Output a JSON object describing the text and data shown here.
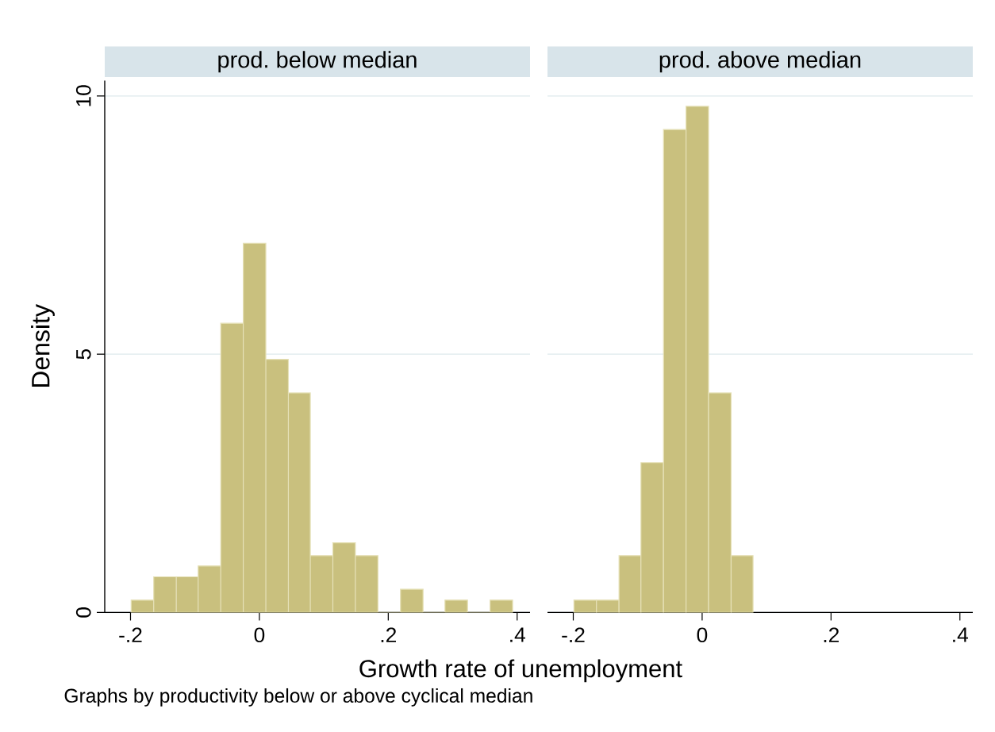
{
  "chart_data": [
    {
      "type": "histogram",
      "title": "prod. below median",
      "xlabel": "Growth rate of unemployment",
      "ylabel": "Density",
      "annotations": [
        "Graphs by productivity below or above cyclical median"
      ],
      "bins": [
        -0.199,
        -0.164,
        -0.129,
        -0.095,
        -0.06,
        -0.025,
        0.01,
        0.045,
        0.079,
        0.114,
        0.149,
        0.184,
        0.219,
        0.254,
        0.288,
        0.323,
        0.358,
        0.393
      ],
      "values": [
        0.24,
        0.69,
        0.69,
        0.9,
        5.6,
        7.15,
        4.9,
        4.25,
        1.1,
        1.35,
        1.1,
        0,
        0.45,
        0,
        0.24,
        0,
        0.24
      ],
      "color": "#c9c07e",
      "xlim": [
        -0.24,
        0.42
      ],
      "ylim": [
        0,
        10.3
      ],
      "xticks": [
        {
          "value": -0.2,
          "label": "-.2"
        },
        0,
        {
          "value": 0.2,
          "label": ".2"
        },
        {
          "value": 0.4,
          "label": ".4"
        }
      ],
      "yticks": [
        0,
        5,
        10
      ],
      "grid": "y"
    },
    {
      "type": "histogram",
      "title": "prod. above median",
      "bins": [
        -0.199,
        -0.164,
        -0.129,
        -0.095,
        -0.06,
        -0.025,
        0.01,
        0.045,
        0.079
      ],
      "values": [
        0.24,
        0.24,
        1.1,
        2.9,
        9.35,
        9.8,
        4.25,
        1.1
      ],
      "color": "#c9c07e",
      "xlim": [
        -0.24,
        0.42
      ],
      "xticks": [
        {
          "value": -0.2,
          "label": "-.2"
        },
        0,
        {
          "value": 0.2,
          "label": ".2"
        },
        {
          "value": 0.4,
          "label": ".4"
        }
      ],
      "yticks": [
        0,
        5,
        10
      ],
      "grid": "y",
      "tick_labels": "x"
    }
  ]
}
